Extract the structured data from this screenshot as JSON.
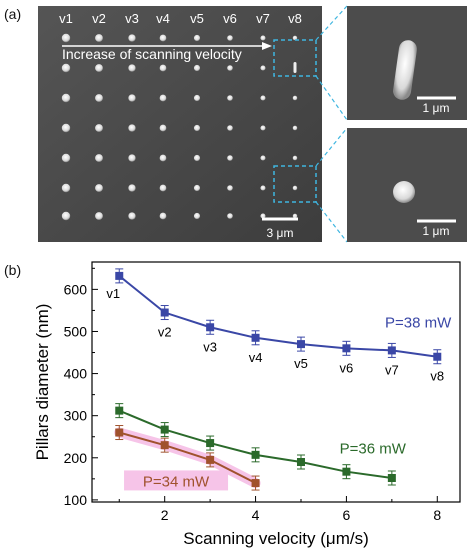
{
  "panel_a": {
    "label": "(a)",
    "column_labels": [
      "v1",
      "v2",
      "v3",
      "v4",
      "v5",
      "v6",
      "v7",
      "v8"
    ],
    "arrow_text": "Increase of scanning velocity",
    "scale_main": "3 μm",
    "inset_top_scale": "1 μm",
    "inset_bottom_scale": "1 μm",
    "colors": {
      "sem_bg": "#4a4a4a",
      "dot": "#e8e8e8",
      "dash": "#3fb6e0"
    }
  },
  "panel_b": {
    "label": "(b)"
  },
  "chart_data": {
    "type": "line",
    "xlabel": "Scanning velocity (μm/s)",
    "ylabel": "Pillars diameter (nm)",
    "xlim": [
      0.4,
      8.5
    ],
    "ylim": [
      95,
      665
    ],
    "xticks": [
      2,
      4,
      6,
      8
    ],
    "yticks": [
      100,
      200,
      300,
      400,
      500,
      600
    ],
    "series": [
      {
        "name": "P=38 mW",
        "color": "#3a47a6",
        "x": [
          1,
          2,
          3,
          4,
          5,
          6,
          7,
          8
        ],
        "values": [
          632,
          545,
          510,
          485,
          470,
          460,
          455,
          440
        ],
        "point_labels": [
          "v1",
          "v2",
          "v3",
          "v4",
          "v5",
          "v6",
          "v7",
          "v8"
        ]
      },
      {
        "name": "P=36 mW",
        "color": "#2b6a2b",
        "x": [
          1,
          2,
          3,
          4,
          5,
          6,
          7
        ],
        "values": [
          312,
          267,
          235,
          207,
          190,
          167,
          152
        ]
      },
      {
        "name": "P=34 mW",
        "color": "#a0522d",
        "x": [
          1,
          2,
          3,
          4
        ],
        "values": [
          260,
          230,
          195,
          140
        ]
      }
    ]
  }
}
